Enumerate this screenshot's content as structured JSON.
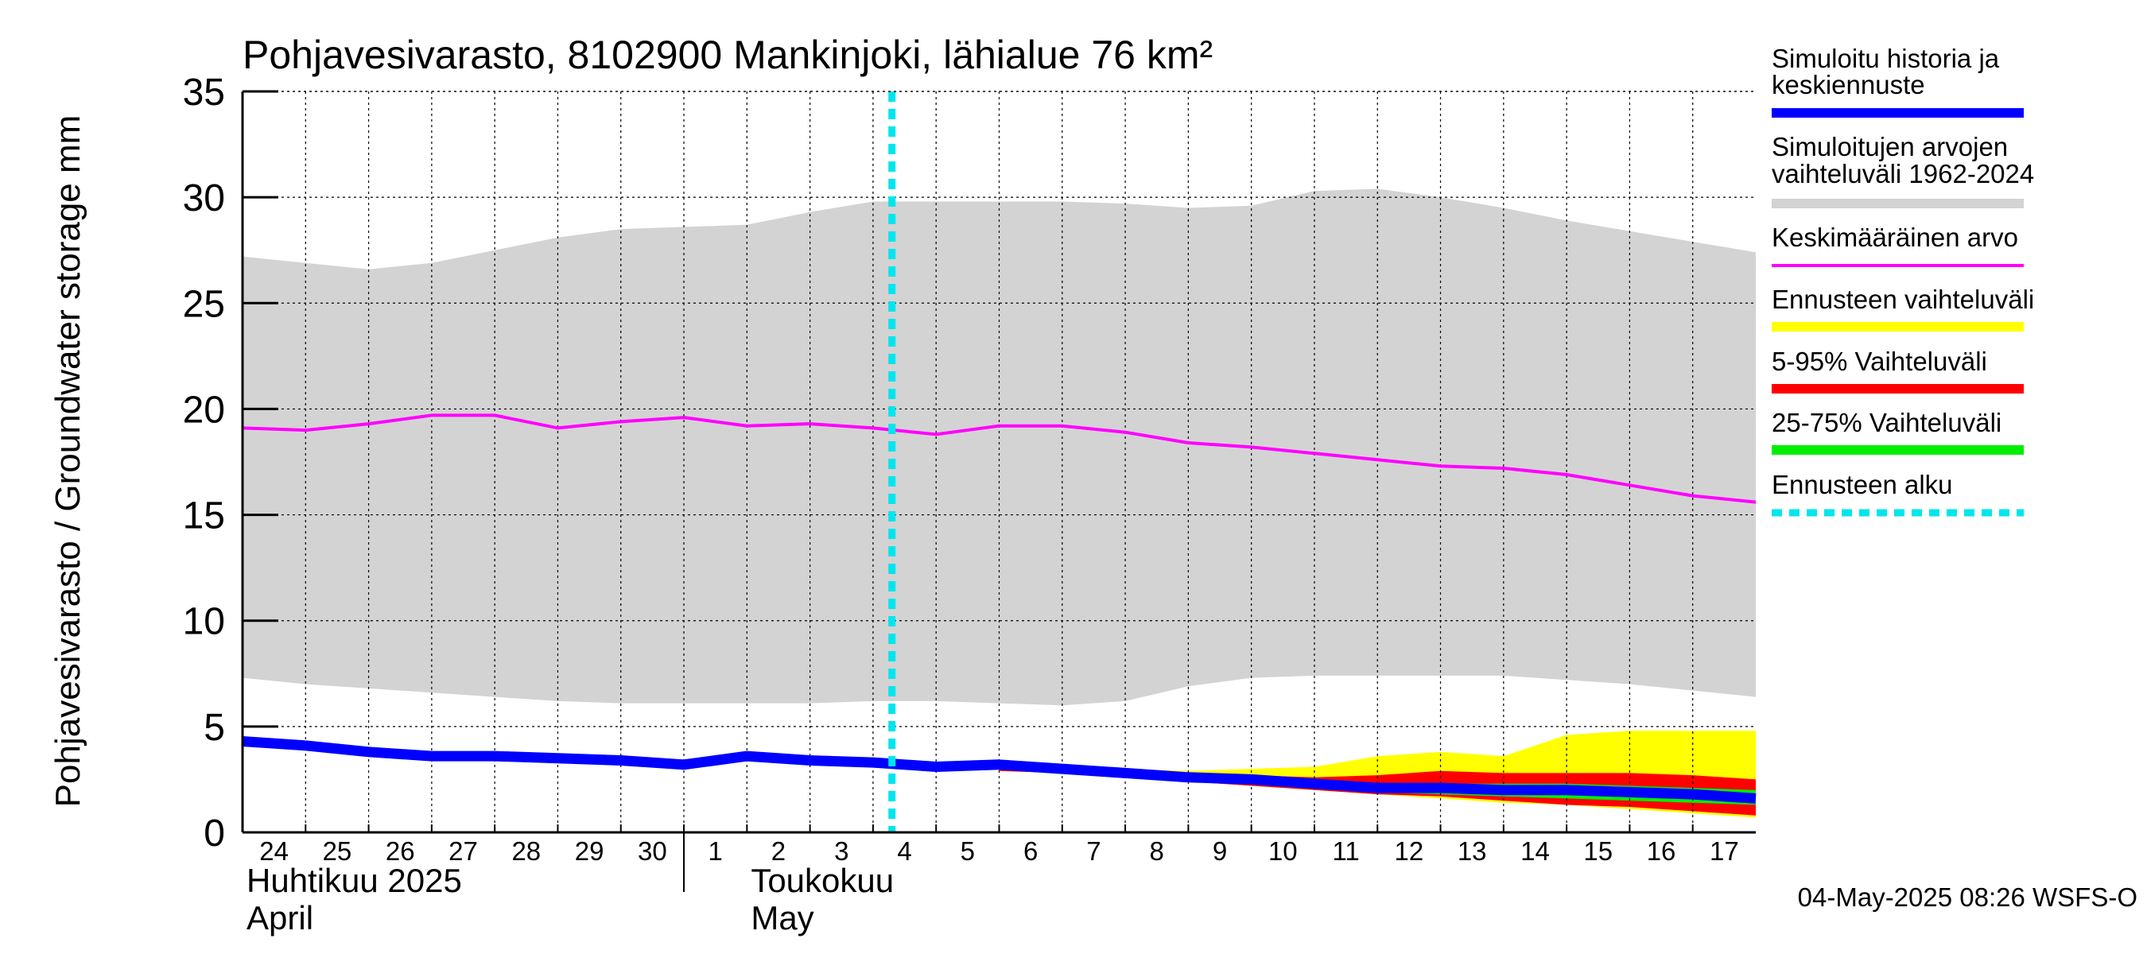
{
  "chart_data": {
    "type": "area",
    "title": "Pohjavesivarasto, 8102900 Mankinjoki, lähialue 76 km²",
    "ylabel": "Pohjavesivarasto / Groundwater storage   mm",
    "ylim": [
      0,
      35
    ],
    "yticks": [
      0,
      5,
      10,
      15,
      20,
      25,
      30,
      35
    ],
    "x_day_range": [
      23.5,
      47.5
    ],
    "x_tick_labels": [
      {
        "day": 24,
        "label": "24"
      },
      {
        "day": 25,
        "label": "25"
      },
      {
        "day": 26,
        "label": "26"
      },
      {
        "day": 27,
        "label": "27"
      },
      {
        "day": 28,
        "label": "28"
      },
      {
        "day": 29,
        "label": "29"
      },
      {
        "day": 30,
        "label": "30"
      },
      {
        "day": 31,
        "label": "1"
      },
      {
        "day": 32,
        "label": "2"
      },
      {
        "day": 33,
        "label": "3"
      },
      {
        "day": 34,
        "label": "4"
      },
      {
        "day": 35,
        "label": "5"
      },
      {
        "day": 36,
        "label": "6"
      },
      {
        "day": 37,
        "label": "7"
      },
      {
        "day": 38,
        "label": "8"
      },
      {
        "day": 39,
        "label": "9"
      },
      {
        "day": 40,
        "label": "10"
      },
      {
        "day": 41,
        "label": "11"
      },
      {
        "day": 42,
        "label": "12"
      },
      {
        "day": 43,
        "label": "13"
      },
      {
        "day": 44,
        "label": "14"
      },
      {
        "day": 45,
        "label": "15"
      },
      {
        "day": 46,
        "label": "16"
      },
      {
        "day": 47,
        "label": "17"
      }
    ],
    "month_labels": [
      {
        "day": 23.5,
        "line1": "Huhtikuu  2025",
        "line2": "April"
      },
      {
        "day": 31.5,
        "line1": "Toukokuu",
        "line2": "May"
      }
    ],
    "month_separator_day": 30.5,
    "forecast_start_day": 33.8,
    "range_band": {
      "name": "Simuloitujen arvojen vaihteluväli 1962-2024",
      "color": "#d3d3d3",
      "x": [
        23.5,
        24.5,
        25.5,
        26.5,
        27.5,
        28.5,
        29.5,
        30.5,
        31.5,
        32.5,
        33.5,
        34.5,
        35.5,
        36.5,
        37.5,
        38.5,
        39.5,
        40.5,
        41.5,
        42.5,
        43.5,
        44.5,
        45.5,
        46.5,
        47.5
      ],
      "upper": [
        27.2,
        26.9,
        26.6,
        26.9,
        27.5,
        28.1,
        28.5,
        28.6,
        28.7,
        29.3,
        29.8,
        29.8,
        29.8,
        29.8,
        29.7,
        29.5,
        29.6,
        30.3,
        30.4,
        30.0,
        29.5,
        28.9,
        28.4,
        27.9,
        27.4
      ],
      "lower": [
        7.3,
        7.0,
        6.8,
        6.6,
        6.4,
        6.2,
        6.1,
        6.1,
        6.1,
        6.1,
        6.2,
        6.2,
        6.1,
        6.0,
        6.2,
        6.9,
        7.3,
        7.4,
        7.4,
        7.4,
        7.4,
        7.2,
        7.0,
        6.7,
        6.4
      ]
    },
    "mean_line": {
      "name": "Keskimääräinen arvo",
      "color": "#ff00ff",
      "x": [
        23.5,
        24.5,
        25.5,
        26.5,
        27.5,
        28.5,
        29.5,
        30.5,
        31.5,
        32.5,
        33.5,
        34.5,
        35.5,
        36.5,
        37.5,
        38.5,
        39.5,
        40.5,
        41.5,
        42.5,
        43.5,
        44.5,
        45.5,
        46.5,
        47.5
      ],
      "values": [
        19.1,
        19.0,
        19.3,
        19.7,
        19.7,
        19.1,
        19.4,
        19.6,
        19.2,
        19.3,
        19.1,
        18.8,
        19.2,
        19.2,
        18.9,
        18.4,
        18.2,
        17.9,
        17.6,
        17.3,
        17.2,
        16.9,
        16.4,
        15.9,
        15.6
      ]
    },
    "forecast_x": [
      35.5,
      36.5,
      37.5,
      38.5,
      39.5,
      40.5,
      41.5,
      42.5,
      43.5,
      44.5,
      45.5,
      46.5,
      47.5
    ],
    "forecast_range": {
      "name": "Ennusteen vaihteluväli",
      "color": "#ffff00",
      "upper": [
        3.2,
        3.2,
        3.0,
        2.9,
        3.0,
        3.1,
        3.6,
        3.8,
        3.6,
        4.6,
        4.8,
        4.8,
        4.8
      ],
      "lower": [
        2.9,
        2.8,
        2.6,
        2.4,
        2.2,
        2.0,
        1.8,
        1.6,
        1.4,
        1.3,
        1.1,
        0.9,
        0.7
      ]
    },
    "band_5_95": {
      "name": "5-95% Vaihteluväli",
      "color": "#ff0000",
      "upper": [
        3.1,
        3.0,
        2.9,
        2.8,
        2.7,
        2.6,
        2.7,
        2.9,
        2.8,
        2.8,
        2.8,
        2.7,
        2.5
      ],
      "lower": [
        2.9,
        2.8,
        2.6,
        2.4,
        2.2,
        2.0,
        1.8,
        1.7,
        1.5,
        1.3,
        1.2,
        1.0,
        0.8
      ]
    },
    "band_25_75": {
      "name": "25-75% Vaihteluväli",
      "color": "#00ee00",
      "upper": [
        3.1,
        3.0,
        2.8,
        2.7,
        2.5,
        2.4,
        2.3,
        2.3,
        2.3,
        2.3,
        2.2,
        2.1,
        2.0
      ],
      "lower": [
        3.0,
        2.9,
        2.7,
        2.5,
        2.3,
        2.1,
        1.9,
        1.8,
        1.7,
        1.6,
        1.5,
        1.4,
        1.3
      ]
    },
    "history_line": {
      "name": "Simuloitu historia ja keskiennuste",
      "color": "#0000ff",
      "x": [
        23.5,
        24.5,
        25.5,
        26.5,
        27.5,
        28.5,
        29.5,
        30.5,
        31.5,
        32.5,
        33.5,
        34.5,
        35.5,
        36.5,
        37.5,
        38.5,
        39.5,
        40.5,
        41.5,
        42.5,
        43.5,
        44.5,
        45.5,
        46.5,
        47.5
      ],
      "values": [
        4.3,
        4.1,
        3.8,
        3.6,
        3.6,
        3.5,
        3.4,
        3.2,
        3.6,
        3.4,
        3.3,
        3.1,
        3.2,
        3.0,
        2.8,
        2.6,
        2.5,
        2.3,
        2.1,
        2.1,
        2.0,
        2.0,
        1.9,
        1.8,
        1.6
      ]
    }
  },
  "legend": [
    {
      "line1": "Simuloitu historia ja",
      "line2": "keskiennuste",
      "color": "#0000ff",
      "style": "solid",
      "weight": "thick"
    },
    {
      "line1": "Simuloitujen arvojen",
      "line2": "vaihteluväli 1962-2024",
      "color": "#d3d3d3",
      "style": "solid",
      "weight": "thick"
    },
    {
      "line1": "Keskimääräinen arvo",
      "line2": "",
      "color": "#ff00ff",
      "style": "solid",
      "weight": "thin"
    },
    {
      "line1": "Ennusteen vaihteluväli",
      "line2": "",
      "color": "#ffff00",
      "style": "solid",
      "weight": "thick"
    },
    {
      "line1": "5-95% Vaihteluväli",
      "line2": "",
      "color": "#ff0000",
      "style": "solid",
      "weight": "thick"
    },
    {
      "line1": "25-75% Vaihteluväli",
      "line2": "",
      "color": "#00ee00",
      "style": "solid",
      "weight": "thick"
    },
    {
      "line1": "Ennusteen alku",
      "line2": "",
      "color": "#00e5ee",
      "style": "dashed",
      "weight": "thick"
    }
  ],
  "footer": "04-May-2025 08:26 WSFS-O"
}
